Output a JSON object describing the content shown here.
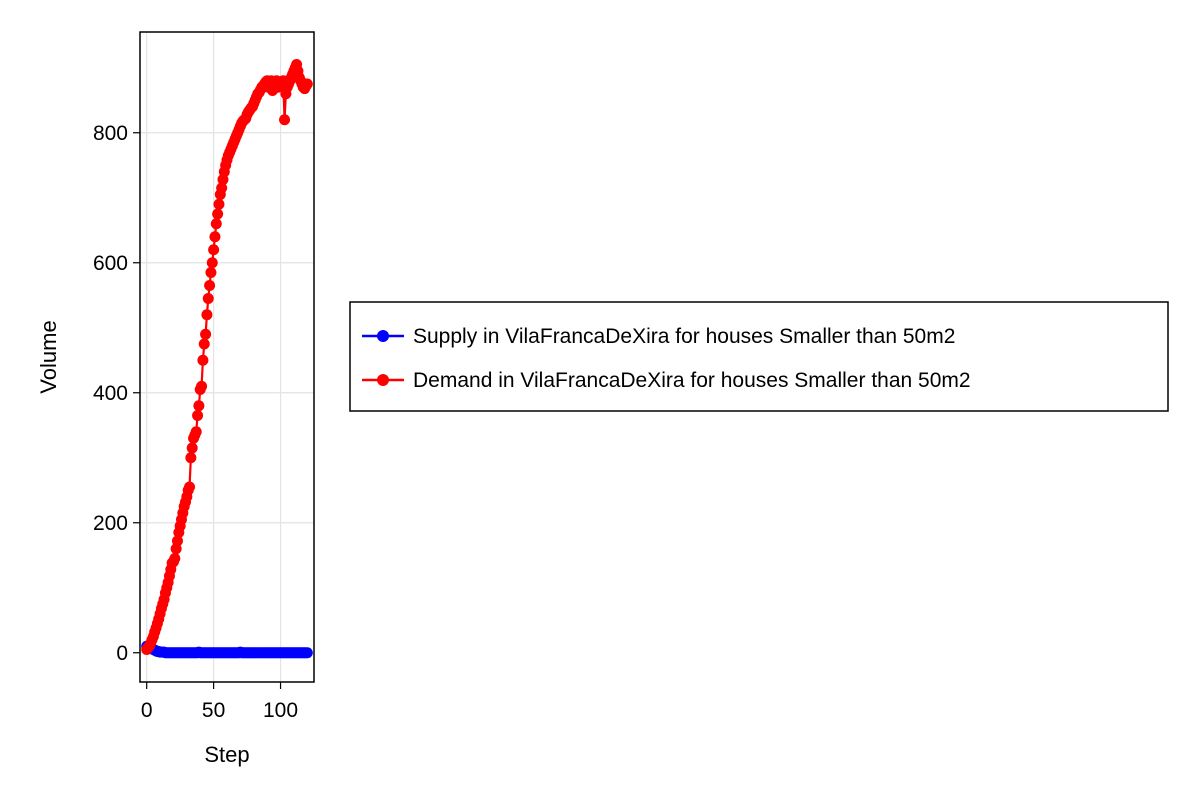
{
  "chart_data": {
    "type": "line",
    "xlabel": "Step",
    "ylabel": "Volume",
    "xlim": [
      -5,
      125
    ],
    "ylim": [
      -45,
      955
    ],
    "x_ticks": [
      0,
      50,
      100
    ],
    "y_ticks": [
      0,
      200,
      400,
      600,
      800
    ],
    "grid": true,
    "legend_position": "right",
    "series": [
      {
        "name": "Supply in VilaFrancaDeXira for houses Smaller than 50m2",
        "color": "#0000ff",
        "x": [
          0,
          1,
          2,
          3,
          4,
          5,
          6,
          7,
          8,
          9,
          10,
          11,
          12,
          13,
          14,
          15,
          16,
          17,
          18,
          19,
          20,
          21,
          22,
          23,
          24,
          25,
          26,
          27,
          28,
          29,
          30,
          31,
          32,
          33,
          34,
          35,
          36,
          37,
          38,
          39,
          40,
          41,
          42,
          43,
          44,
          45,
          46,
          47,
          48,
          49,
          50,
          51,
          52,
          53,
          54,
          55,
          56,
          57,
          58,
          59,
          60,
          61,
          62,
          63,
          64,
          65,
          66,
          67,
          68,
          69,
          70,
          71,
          72,
          73,
          74,
          75,
          76,
          77,
          78,
          79,
          80,
          81,
          82,
          83,
          84,
          85,
          86,
          87,
          88,
          89,
          90,
          91,
          92,
          93,
          94,
          95,
          96,
          97,
          98,
          99,
          100,
          101,
          102,
          103,
          104,
          105,
          106,
          107,
          108,
          109,
          110,
          111,
          112,
          113,
          114,
          115,
          116,
          117,
          118,
          119,
          120
        ],
        "y": [
          10,
          9,
          8,
          7,
          6,
          5,
          4,
          3,
          2,
          2,
          1,
          1,
          1,
          1,
          0,
          0,
          0,
          0,
          0,
          0,
          0,
          0,
          0,
          0,
          0,
          0,
          0,
          0,
          0,
          0,
          0,
          0,
          0,
          0,
          0,
          0,
          0,
          0,
          0,
          1,
          0,
          0,
          0,
          0,
          0,
          0,
          0,
          0,
          0,
          0,
          0,
          0,
          0,
          0,
          0,
          0,
          0,
          0,
          0,
          0,
          0,
          0,
          0,
          0,
          0,
          0,
          0,
          0,
          0,
          0,
          1,
          0,
          0,
          0,
          0,
          0,
          0,
          0,
          0,
          0,
          0,
          0,
          0,
          0,
          0,
          0,
          0,
          0,
          0,
          0,
          0,
          0,
          0,
          0,
          0,
          0,
          0,
          0,
          0,
          0,
          0,
          0,
          0,
          0,
          0,
          0,
          0,
          0,
          0,
          0,
          0,
          0,
          0,
          0,
          0,
          0,
          0,
          0,
          0,
          0,
          0
        ]
      },
      {
        "name": "Demand in VilaFrancaDeXira for houses Smaller than 50m2",
        "color": "#ff0000",
        "x": [
          0,
          1,
          2,
          3,
          4,
          5,
          6,
          7,
          8,
          9,
          10,
          11,
          12,
          13,
          14,
          15,
          16,
          17,
          18,
          19,
          20,
          21,
          22,
          23,
          24,
          25,
          26,
          27,
          28,
          29,
          30,
          31,
          32,
          33,
          34,
          35,
          36,
          37,
          38,
          39,
          40,
          41,
          42,
          43,
          44,
          45,
          46,
          47,
          48,
          49,
          50,
          51,
          52,
          53,
          54,
          55,
          56,
          57,
          58,
          59,
          60,
          61,
          62,
          63,
          64,
          65,
          66,
          67,
          68,
          69,
          70,
          71,
          72,
          73,
          74,
          75,
          76,
          77,
          78,
          79,
          80,
          81,
          82,
          83,
          84,
          85,
          86,
          87,
          88,
          89,
          90,
          91,
          92,
          93,
          94,
          95,
          96,
          97,
          98,
          99,
          100,
          101,
          102,
          103,
          104,
          105,
          106,
          107,
          108,
          109,
          110,
          111,
          112,
          113,
          114,
          115,
          116,
          117,
          118,
          119,
          120
        ],
        "y": [
          5,
          8,
          10,
          15,
          20,
          25,
          32,
          38,
          45,
          52,
          60,
          68,
          75,
          82,
          92,
          100,
          108,
          118,
          128,
          138,
          140,
          145,
          160,
          172,
          185,
          195,
          205,
          215,
          225,
          232,
          240,
          250,
          255,
          300,
          315,
          330,
          335,
          340,
          365,
          380,
          405,
          410,
          450,
          475,
          490,
          520,
          545,
          565,
          585,
          600,
          620,
          640,
          660,
          675,
          690,
          705,
          715,
          728,
          740,
          750,
          758,
          765,
          770,
          775,
          780,
          785,
          790,
          795,
          800,
          805,
          810,
          815,
          818,
          820,
          822,
          828,
          832,
          835,
          838,
          840,
          845,
          850,
          855,
          860,
          862,
          866,
          870,
          872,
          875,
          878,
          880,
          870,
          875,
          880,
          865,
          870,
          875,
          880,
          870,
          875,
          872,
          878,
          880,
          820,
          860,
          870,
          875,
          880,
          885,
          890,
          895,
          900,
          905,
          895,
          885,
          880,
          875,
          870,
          868,
          872,
          875
        ]
      }
    ]
  }
}
